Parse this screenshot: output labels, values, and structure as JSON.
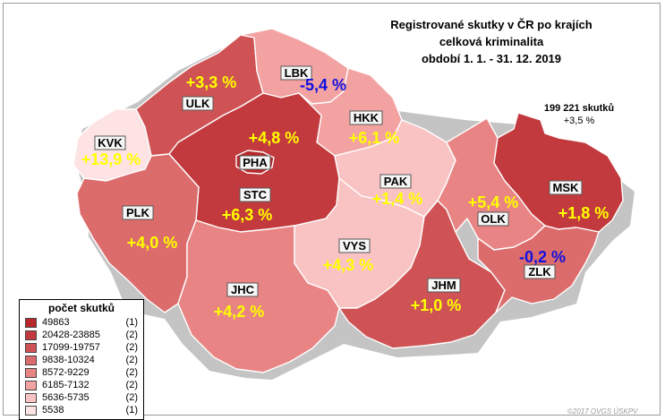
{
  "title": {
    "line1": "Registrované skutky v ČR po krajích",
    "line2": "celková kriminalita",
    "line3": "období 1. 1. - 31. 12. 2019"
  },
  "total": {
    "count": "199 221 skutků",
    "change": "+3,5 %"
  },
  "legend": {
    "title": "počet skutků",
    "items": [
      {
        "range": "49863",
        "count": "(1)",
        "color": "#b8282c"
      },
      {
        "range": "20428-23885",
        "count": "(2)",
        "color": "#c23a3d"
      },
      {
        "range": "17099-19757",
        "count": "(2)",
        "color": "#cf5355"
      },
      {
        "range": "9838-10324",
        "count": "(2)",
        "color": "#dc6c6c"
      },
      {
        "range": "8572-9229",
        "count": "(2)",
        "color": "#e98484"
      },
      {
        "range": "6185-7132",
        "count": "(2)",
        "color": "#f3a2a2"
      },
      {
        "range": "5636-5735",
        "count": "(2)",
        "color": "#f9c3c3"
      },
      {
        "range": "5538",
        "count": "(1)",
        "color": "#fde3e3"
      }
    ]
  },
  "regions": {
    "PHA": {
      "code": "PHA",
      "change": "+4,8 %",
      "change_color": "#ffff00",
      "fill": "#b8282c"
    },
    "STC": {
      "code": "STC",
      "change": "+6,3 %",
      "change_color": "#ffff00",
      "fill": "#c23a3d"
    },
    "JHC": {
      "code": "JHC",
      "change": "+4,2 %",
      "change_color": "#ffff00",
      "fill": "#e98484"
    },
    "PLK": {
      "code": "PLK",
      "change": "+4,0 %",
      "change_color": "#ffff00",
      "fill": "#dc6c6c"
    },
    "KVK": {
      "code": "KVK",
      "change": "+13,9 %",
      "change_color": "#ffff00",
      "fill": "#fde3e3"
    },
    "ULK": {
      "code": "ULK",
      "change": "+3,3 %",
      "change_color": "#ffff00",
      "fill": "#cf5355"
    },
    "LBK": {
      "code": "LBK",
      "change": "-5,4 %",
      "change_color": "#1010e0",
      "fill": "#f3a2a2"
    },
    "HKK": {
      "code": "HKK",
      "change": "+6,1 %",
      "change_color": "#ffff00",
      "fill": "#f3a2a2"
    },
    "PAK": {
      "code": "PAK",
      "change": "+1,4 %",
      "change_color": "#ffff00",
      "fill": "#f9c3c3"
    },
    "VYS": {
      "code": "VYS",
      "change": "+4,3 %",
      "change_color": "#ffff00",
      "fill": "#f9c3c3"
    },
    "JHM": {
      "code": "JHM",
      "change": "+1,0 %",
      "change_color": "#ffff00",
      "fill": "#cf5355"
    },
    "OLK": {
      "code": "OLK",
      "change": "+5,4 %",
      "change_color": "#ffff00",
      "fill": "#e98484"
    },
    "MSK": {
      "code": "MSK",
      "change": "+1,8 %",
      "change_color": "#ffff00",
      "fill": "#c23a3d"
    },
    "ZLK": {
      "code": "ZLK",
      "change": "-0,2 %",
      "change_color": "#1010e0",
      "fill": "#dc6c6c"
    }
  },
  "copyright": "©2017 OVGS ÚSKPV"
}
